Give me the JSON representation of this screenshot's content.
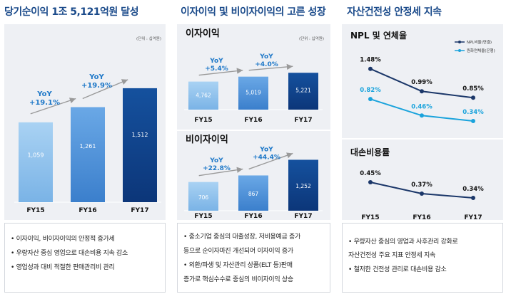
{
  "panels": {
    "left": {
      "title": "당기순이익 1조 5,121억원 달성",
      "unit": "(단위 : 십억원)",
      "bullets": [
        "• 이자이익, 비이자이익의 안정적 증가세",
        "• 우량자산 중심 영업으로 대손비용 지속 감소",
        "• 영업성과 대비 적절한 판매관리비 관리"
      ]
    },
    "middle": {
      "title": "이자이익 및 비이자이익의 고른 성장",
      "bullets": [
        "• 중소기업  중심의 대출성장, 저비용예금 증가",
        "   등으로 순이자마진 개선되어 이자이익 증가",
        "• 외환/파생 및 자산관리 상품(ELT 등)판매",
        "   증가로 핵심수수료 중심의 비이자이익 상승"
      ]
    },
    "right": {
      "title": "자산건전성 안정세 지속",
      "bullets": [
        "• 우량자산 중심의 영업과 사후관리 강화로",
        "   자산건전성 주요 지표 안정세 지속",
        "• 철저한 건전성 관리로 대손비용 감소"
      ]
    }
  },
  "colors": {
    "title": "#1a4a8a",
    "bar_light": "#8fc1ec",
    "bar_mid": "#4f90d6",
    "bar_dark": "#11458e",
    "npl_line": "#1b3769",
    "delinq_line": "#1aa3dc",
    "arrow": "#9a9a9a",
    "yoy_text": "#1e78c8"
  },
  "chart_data": [
    {
      "id": "net-income",
      "type": "bar",
      "title": "",
      "categories": [
        "FY15",
        "FY16",
        "FY17"
      ],
      "values": [
        1059,
        1261,
        1512
      ],
      "value_labels": [
        "1,059",
        "1,261",
        "1,512"
      ],
      "unit": "(단위 : 십억원)",
      "ylim": [
        0,
        1700
      ],
      "yoy": [
        {
          "label": "YoY",
          "value": "+19.1%",
          "from": 0,
          "to": 1
        },
        {
          "label": "YoY",
          "value": "+19.9%",
          "from": 1,
          "to": 2
        }
      ]
    },
    {
      "id": "interest-income",
      "type": "bar",
      "title": "이자이익",
      "categories": [
        "FY15",
        "FY16",
        "FY17"
      ],
      "values": [
        4762,
        5019,
        5221
      ],
      "value_labels": [
        "4,762",
        "5,019",
        "5,221"
      ],
      "unit": "(단위 : 십억원)",
      "ylim": [
        3300,
        5600
      ],
      "yoy": [
        {
          "label": "YoY",
          "value": "+5.4%",
          "from": 0,
          "to": 1
        },
        {
          "label": "YoY",
          "value": "+4.0%",
          "from": 1,
          "to": 2
        }
      ]
    },
    {
      "id": "non-interest-income",
      "type": "bar",
      "title": "비이자이익",
      "categories": [
        "FY15",
        "FY16",
        "FY17"
      ],
      "values": [
        706,
        867,
        1252
      ],
      "value_labels": [
        "706",
        "867",
        "1,252"
      ],
      "ylim": [
        0,
        1400
      ],
      "yoy": [
        {
          "label": "YoY",
          "value": "+22.8%",
          "from": 0,
          "to": 1
        },
        {
          "label": "YoY",
          "value": "+44.4%",
          "from": 1,
          "to": 2
        }
      ]
    },
    {
      "id": "npl-delinquency",
      "type": "line",
      "title": "NPL 및 연체율",
      "categories": [
        "FY15",
        "FY16",
        "FY17"
      ],
      "ylim": [
        0.2,
        1.6
      ],
      "series": [
        {
          "name": "NPL비율(연결)",
          "values": [
            1.48,
            0.99,
            0.85
          ],
          "labels": [
            "1.48%",
            "0.99%",
            "0.85%"
          ]
        },
        {
          "name": "원화연체율(은행)",
          "values": [
            0.82,
            0.46,
            0.34
          ],
          "labels": [
            "0.82%",
            "0.46%",
            "0.34%"
          ]
        }
      ]
    },
    {
      "id": "credit-cost",
      "type": "line",
      "title": "대손비용률",
      "categories": [
        "FY15",
        "FY16",
        "FY17"
      ],
      "ylim": [
        0.3,
        0.5
      ],
      "series": [
        {
          "name": "",
          "values": [
            0.45,
            0.37,
            0.34
          ],
          "labels": [
            "0.45%",
            "0.37%",
            "0.34%"
          ]
        }
      ]
    }
  ]
}
